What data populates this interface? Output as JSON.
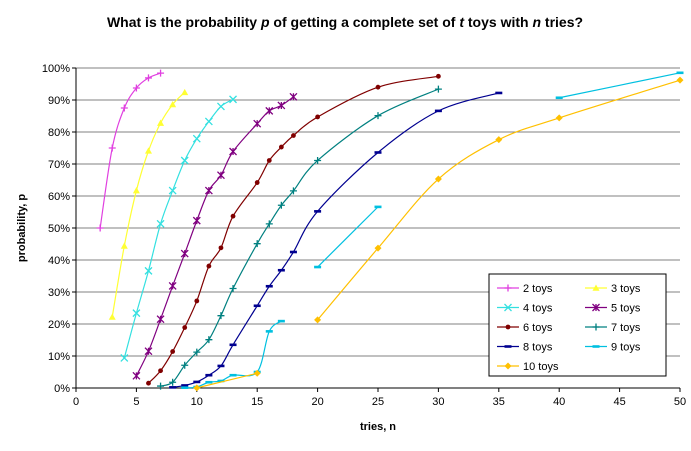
{
  "chart_data": {
    "type": "line",
    "title_parts": [
      {
        "text": "What is the probability ",
        "italic": false
      },
      {
        "text": "p",
        "italic": true
      },
      {
        "text": " of getting a complete set of ",
        "italic": false
      },
      {
        "text": "t",
        "italic": true
      },
      {
        "text": " toys with ",
        "italic": false
      },
      {
        "text": "n",
        "italic": true
      },
      {
        "text": " tries?",
        "italic": false
      }
    ],
    "xlabel": "tries, n",
    "ylabel": "probability, p",
    "xlim": [
      0,
      50
    ],
    "ylim": [
      0,
      1
    ],
    "x_ticks": [
      "0",
      "5",
      "10",
      "15",
      "20",
      "25",
      "30",
      "35",
      "40",
      "45",
      "50"
    ],
    "y_ticks": [
      "0%",
      "10%",
      "20%",
      "30%",
      "40%",
      "50%",
      "60%",
      "70%",
      "80%",
      "90%",
      "100%"
    ],
    "grid": "horizontal",
    "legend_position": "bottom-right",
    "series": [
      {
        "name": "2 toys",
        "color": "#e040e0",
        "marker": "plus",
        "points": [
          [
            2,
            0.5
          ],
          [
            3,
            0.75
          ],
          [
            4,
            0.875
          ],
          [
            5,
            0.9375
          ],
          [
            6,
            0.969
          ],
          [
            7,
            0.984
          ]
        ]
      },
      {
        "name": "3 toys",
        "color": "#ffff33",
        "marker": "tri",
        "points": [
          [
            3,
            0.222
          ],
          [
            4,
            0.444
          ],
          [
            5,
            0.617
          ],
          [
            6,
            0.741
          ],
          [
            7,
            0.828
          ],
          [
            8,
            0.886
          ],
          [
            9,
            0.924
          ]
        ]
      },
      {
        "name": "4 toys",
        "color": "#33e0e0",
        "marker": "x",
        "points": [
          [
            4,
            0.094
          ],
          [
            5,
            0.234
          ],
          [
            6,
            0.366
          ],
          [
            7,
            0.513
          ],
          [
            8,
            0.617
          ],
          [
            9,
            0.711
          ],
          [
            10,
            0.779
          ],
          [
            11,
            0.833
          ],
          [
            12,
            0.88
          ],
          [
            13,
            0.902
          ]
        ]
      },
      {
        "name": "5 toys",
        "color": "#800080",
        "marker": "star",
        "points": [
          [
            5,
            0.038
          ],
          [
            6,
            0.115
          ],
          [
            7,
            0.215
          ],
          [
            8,
            0.319
          ],
          [
            9,
            0.42
          ],
          [
            10,
            0.523
          ],
          [
            11,
            0.617
          ],
          [
            12,
            0.665
          ],
          [
            13,
            0.739
          ],
          [
            15,
            0.826
          ],
          [
            16,
            0.866
          ],
          [
            17,
            0.883
          ],
          [
            18,
            0.91
          ]
        ]
      },
      {
        "name": "6 toys",
        "color": "#800000",
        "marker": "dot",
        "points": [
          [
            6,
            0.015
          ],
          [
            7,
            0.054
          ],
          [
            8,
            0.114
          ],
          [
            9,
            0.189
          ],
          [
            10,
            0.272
          ],
          [
            11,
            0.381
          ],
          [
            12,
            0.438
          ],
          [
            13,
            0.537
          ],
          [
            15,
            0.642
          ],
          [
            16,
            0.711
          ],
          [
            17,
            0.753
          ],
          [
            18,
            0.789
          ],
          [
            20,
            0.847
          ],
          [
            25,
            0.94
          ],
          [
            30,
            0.974
          ]
        ]
      },
      {
        "name": "7 toys",
        "color": "#008080",
        "marker": "plus",
        "points": [
          [
            7,
            0.006
          ],
          [
            8,
            0.018
          ],
          [
            9,
            0.071
          ],
          [
            10,
            0.112
          ],
          [
            11,
            0.151
          ],
          [
            12,
            0.226
          ],
          [
            13,
            0.311
          ],
          [
            15,
            0.451
          ],
          [
            16,
            0.513
          ],
          [
            17,
            0.571
          ],
          [
            18,
            0.616
          ],
          [
            20,
            0.711
          ],
          [
            25,
            0.851
          ],
          [
            30,
            0.934
          ]
        ]
      },
      {
        "name": "8 toys",
        "color": "#000090",
        "marker": "dash",
        "points": [
          [
            8,
            0.002
          ],
          [
            9,
            0.008
          ],
          [
            10,
            0.019
          ],
          [
            11,
            0.04
          ],
          [
            12,
            0.069
          ],
          [
            13,
            0.135
          ],
          [
            15,
            0.257
          ],
          [
            16,
            0.318
          ],
          [
            17,
            0.368
          ],
          [
            18,
            0.425
          ],
          [
            20,
            0.552
          ],
          [
            25,
            0.736
          ],
          [
            30,
            0.866
          ],
          [
            35,
            0.922
          ]
        ]
      },
      {
        "name": "9 toys",
        "color": "#00c0e0",
        "marker": "dash",
        "points": [
          [
            9,
            0.001
          ],
          [
            10,
            0.003
          ],
          [
            11,
            0.018
          ],
          [
            12,
            0.022
          ],
          [
            13,
            0.04
          ],
          [
            15,
            0.05
          ],
          [
            16,
            0.177
          ],
          [
            17,
            0.209
          ]
        ],
        "extra_segments": [
          [
            [
              20,
              0.378
            ],
            [
              25,
              0.566
            ]
          ],
          [
            [
              40,
              0.907
            ],
            [
              50,
              0.985
            ]
          ]
        ]
      },
      {
        "name": "10 toys",
        "color": "#ffc000",
        "marker": "diamond",
        "points": [
          [
            10,
            0.0004
          ],
          [
            15,
            0.046
          ]
        ],
        "extra_segments": [
          [
            [
              20,
              0.213
            ],
            [
              25,
              0.437
            ],
            [
              30,
              0.653
            ],
            [
              35,
              0.776
            ],
            [
              40,
              0.844
            ],
            [
              50,
              0.962
            ]
          ]
        ]
      }
    ]
  }
}
